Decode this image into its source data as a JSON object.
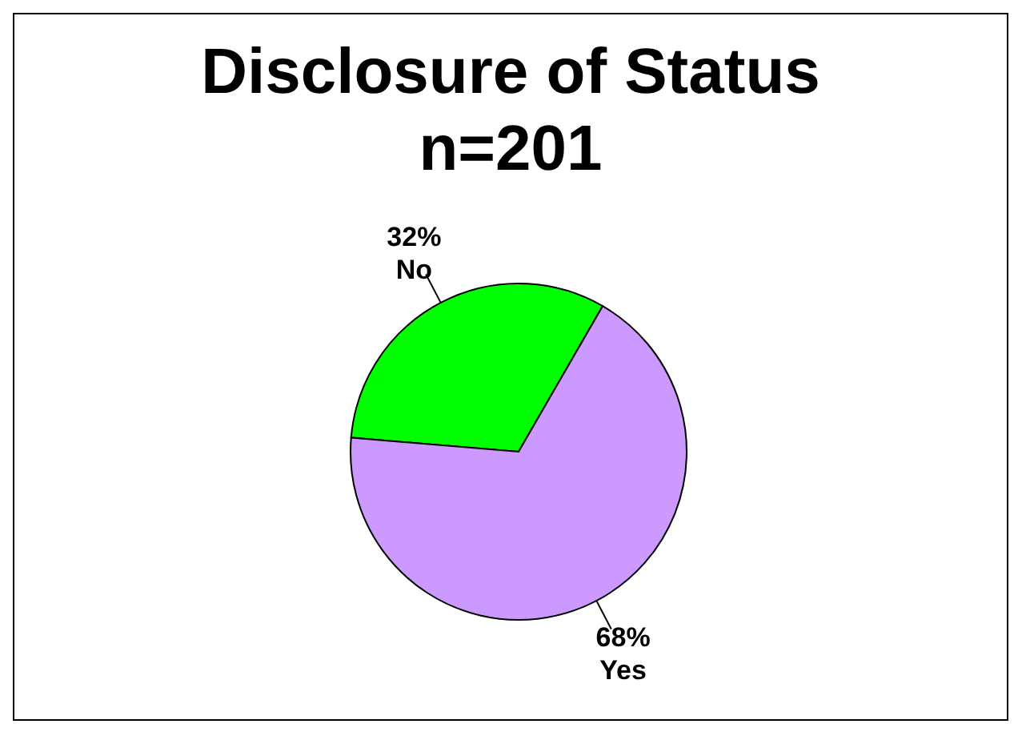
{
  "chart_data": {
    "type": "pie",
    "title": "Disclosure of Status",
    "subtitle": "n=201",
    "categories": [
      "No",
      "Yes"
    ],
    "values": [
      32,
      68
    ],
    "colors": [
      "#00ff00",
      "#cc99ff"
    ],
    "value_labels": [
      "32%",
      "68%"
    ],
    "legend": false
  }
}
